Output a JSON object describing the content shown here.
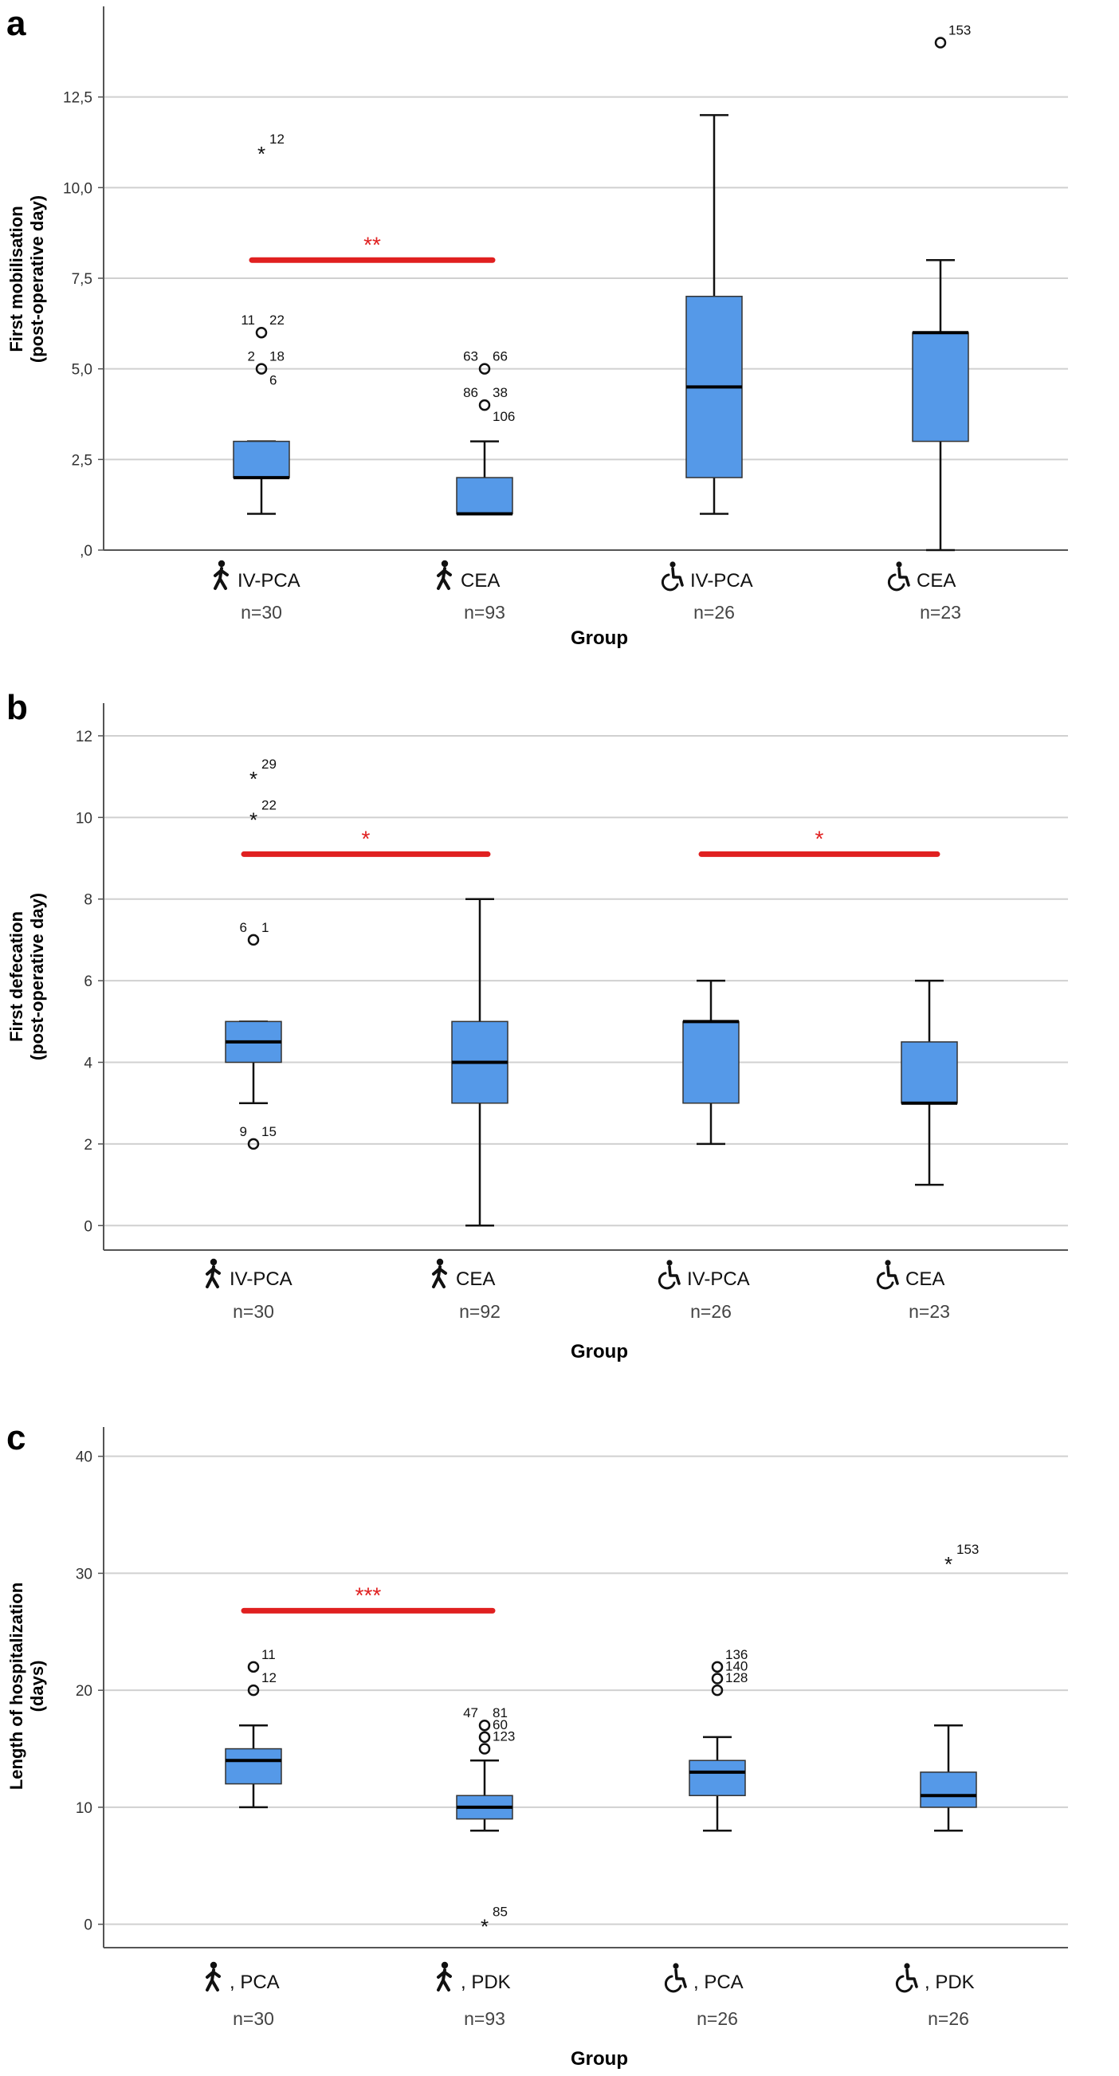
{
  "colors": {
    "box": "#5599e8",
    "box_stroke": "#333333",
    "sig": "#e02020",
    "grid": "#d0d0d0"
  },
  "chart_data": [
    {
      "panel": "a",
      "type": "box",
      "ylabel": [
        "First mobilisation",
        "(post-operative day)"
      ],
      "xlabel": "Group",
      "ylim": [
        0,
        15
      ],
      "yticks": [
        0,
        2.5,
        5,
        7.5,
        10,
        12.5
      ],
      "ytick_labels": [
        ",0",
        "2,5",
        "5,0",
        "7,5",
        "10,0",
        "12,5"
      ],
      "categories": [
        {
          "icon": "walking-person-icon",
          "label": "IV-PCA",
          "n": "n=30"
        },
        {
          "icon": "walking-person-icon",
          "label": "CEA",
          "n": "n=93"
        },
        {
          "icon": "wheelchair-icon",
          "label": "IV-PCA",
          "n": "n=26"
        },
        {
          "icon": "wheelchair-icon",
          "label": "CEA",
          "n": "n=23"
        }
      ],
      "boxes": [
        {
          "whisker_low": 1,
          "q1": 2,
          "median": 2,
          "q3": 3,
          "whisker_high": 3,
          "outliers": [
            {
              "value": 11,
              "marker": "star",
              "labels": [
                "12"
              ]
            },
            {
              "value": 6,
              "marker": "circle",
              "labels": [
                "11",
                "22"
              ]
            },
            {
              "value": 5,
              "marker": "circle",
              "labels": [
                "2",
                "18",
                "6"
              ]
            }
          ]
        },
        {
          "whisker_low": 1,
          "q1": 1,
          "median": 1,
          "q3": 2,
          "whisker_high": 3,
          "outliers": [
            {
              "value": 5,
              "marker": "circle",
              "labels": [
                "63",
                "66"
              ]
            },
            {
              "value": 4,
              "marker": "circle",
              "labels": [
                "86",
                "38",
                "106"
              ]
            }
          ]
        },
        {
          "whisker_low": 1,
          "q1": 2,
          "median": 4.5,
          "q3": 7,
          "whisker_high": 12,
          "outliers": []
        },
        {
          "whisker_low": 0,
          "q1": 3,
          "median": 6,
          "q3": 6,
          "whisker_high": 8,
          "outliers": [
            {
              "value": 14,
              "marker": "circle",
              "labels": [
                "153"
              ]
            }
          ]
        }
      ],
      "significance": [
        {
          "from": 0,
          "to": 1,
          "value": 8,
          "label": "**"
        }
      ]
    },
    {
      "panel": "b",
      "type": "box",
      "ylabel": [
        "First defecation",
        "(post-operative day)"
      ],
      "xlabel": "Group",
      "ylim": [
        -0.6,
        12.8
      ],
      "yticks": [
        0,
        2,
        4,
        6,
        8,
        10,
        12
      ],
      "ytick_labels": [
        "0",
        "2",
        "4",
        "6",
        "8",
        "10",
        "12"
      ],
      "categories": [
        {
          "icon": "walking-person-icon",
          "label": "IV-PCA",
          "n": "n=30"
        },
        {
          "icon": "walking-person-icon",
          "label": "CEA",
          "n": "n=92"
        },
        {
          "icon": "wheelchair-icon",
          "label": "IV-PCA",
          "n": "n=26"
        },
        {
          "icon": "wheelchair-icon",
          "label": "CEA",
          "n": "n=23"
        }
      ],
      "boxes": [
        {
          "whisker_low": 3,
          "q1": 4,
          "median": 4.5,
          "q3": 5,
          "whisker_high": 5,
          "outliers": [
            {
              "value": 11,
              "marker": "star",
              "labels": [
                "29"
              ]
            },
            {
              "value": 10,
              "marker": "star",
              "labels": [
                "22"
              ]
            },
            {
              "value": 7,
              "marker": "circle",
              "labels": [
                "6",
                "1"
              ]
            },
            {
              "value": 2,
              "marker": "circle",
              "labels": [
                "9",
                "15"
              ]
            }
          ]
        },
        {
          "whisker_low": 0,
          "q1": 3,
          "median": 4,
          "q3": 5,
          "whisker_high": 8,
          "outliers": []
        },
        {
          "whisker_low": 2,
          "q1": 3,
          "median": 5,
          "q3": 5,
          "whisker_high": 6,
          "outliers": []
        },
        {
          "whisker_low": 1,
          "q1": 3,
          "median": 3,
          "q3": 4.5,
          "whisker_high": 6,
          "outliers": []
        }
      ],
      "significance": [
        {
          "from": 0,
          "to": 1,
          "value": 9.1,
          "label": "*"
        },
        {
          "from": 2,
          "to": 3,
          "value": 9.1,
          "label": "*"
        }
      ]
    },
    {
      "panel": "c",
      "type": "box",
      "ylabel": [
        "Length of hospitalization",
        "(days)"
      ],
      "xlabel": "Group",
      "ylim": [
        -2,
        42.5
      ],
      "yticks": [
        0,
        10,
        20,
        30,
        40
      ],
      "ytick_labels": [
        "0",
        "10",
        "20",
        "30",
        "40"
      ],
      "categories": [
        {
          "icon": "walking-person-icon",
          "label": ", PCA",
          "n": "n=30"
        },
        {
          "icon": "walking-person-icon",
          "label": ", PDK",
          "n": "n=93"
        },
        {
          "icon": "wheelchair-icon",
          "label": ", PCA",
          "n": "n=26"
        },
        {
          "icon": "wheelchair-icon",
          "label": ", PDK",
          "n": "n=26"
        }
      ],
      "boxes": [
        {
          "whisker_low": 10,
          "q1": 12,
          "median": 14,
          "q3": 15,
          "whisker_high": 17,
          "outliers": [
            {
              "value": 22,
              "marker": "circle",
              "labels": [
                "11"
              ]
            },
            {
              "value": 20,
              "marker": "circle",
              "labels": [
                "12"
              ]
            }
          ]
        },
        {
          "whisker_low": 8,
          "q1": 9,
          "median": 10,
          "q3": 11,
          "whisker_high": 14,
          "outliers": [
            {
              "value": 17,
              "marker": "circle",
              "labels": [
                "47",
                "81"
              ]
            },
            {
              "value": 16,
              "marker": "circle",
              "labels": [
                "60"
              ]
            },
            {
              "value": 15,
              "marker": "circle",
              "labels": [
                "123"
              ]
            },
            {
              "value": 0,
              "marker": "star",
              "labels": [
                "85"
              ]
            }
          ]
        },
        {
          "whisker_low": 8,
          "q1": 11,
          "median": 13,
          "q3": 14,
          "whisker_high": 16,
          "outliers": [
            {
              "value": 22,
              "marker": "circle",
              "labels": [
                "136"
              ]
            },
            {
              "value": 21,
              "marker": "circle",
              "labels": [
                "140"
              ]
            },
            {
              "value": 20,
              "marker": "circle",
              "labels": [
                "128"
              ]
            }
          ]
        },
        {
          "whisker_low": 8,
          "q1": 10,
          "median": 11,
          "q3": 13,
          "whisker_high": 17,
          "outliers": [
            {
              "value": 31,
              "marker": "star",
              "labels": [
                "153"
              ]
            }
          ]
        }
      ],
      "significance": [
        {
          "from": 0,
          "to": 1,
          "value": 26.8,
          "label": "***"
        }
      ]
    }
  ]
}
